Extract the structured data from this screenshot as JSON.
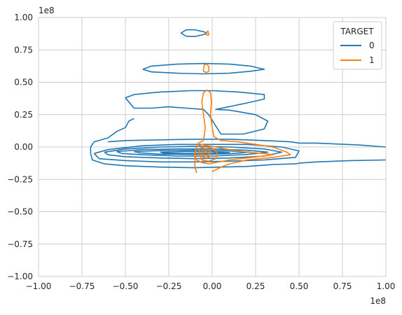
{
  "chart_data": {
    "type": "contour",
    "title": "",
    "xlabel": "",
    "ylabel": "",
    "x_offset_label": "1e8",
    "y_offset_label": "1e8",
    "xlim": [
      -1.0,
      1.0
    ],
    "ylim": [
      -1.0,
      1.0
    ],
    "x_ticks": [
      -1.0,
      -0.75,
      -0.5,
      -0.25,
      0.0,
      0.25,
      0.5,
      0.75,
      1.0
    ],
    "y_ticks": [
      -1.0,
      -0.75,
      -0.5,
      -0.25,
      0.0,
      0.25,
      0.5,
      0.75,
      1.0
    ],
    "x_tick_labels": [
      "−1.00",
      "−0.75",
      "−0.50",
      "−0.25",
      "0.00",
      "0.25",
      "0.50",
      "0.75",
      "1.00"
    ],
    "y_tick_labels": [
      "−1.00",
      "−0.75",
      "−0.50",
      "−0.25",
      "0.00",
      "0.25",
      "0.50",
      "0.75",
      "1.00"
    ],
    "grid": true,
    "legend": {
      "title": "TARGET",
      "placement": "top-right",
      "entries": [
        {
          "label": "0",
          "color": "#1f77b4"
        },
        {
          "label": "1",
          "color": "#ff7f0e"
        }
      ]
    },
    "series": [
      {
        "name": "0",
        "color": "#1f77b4",
        "contours": [
          [
            [
              -0.18,
              0.88
            ],
            [
              -0.15,
              0.905
            ],
            [
              -0.1,
              0.905
            ],
            [
              -0.05,
              0.89
            ],
            [
              -0.03,
              0.88
            ],
            [
              -0.05,
              0.868
            ],
            [
              -0.1,
              0.853
            ],
            [
              -0.15,
              0.855
            ],
            [
              -0.18,
              0.88
            ]
          ],
          [
            [
              -0.4,
              0.6
            ],
            [
              -0.35,
              0.625
            ],
            [
              -0.2,
              0.64
            ],
            [
              -0.05,
              0.645
            ],
            [
              0.1,
              0.64
            ],
            [
              0.22,
              0.625
            ],
            [
              0.3,
              0.6
            ],
            [
              0.22,
              0.585
            ],
            [
              0.1,
              0.57
            ],
            [
              -0.05,
              0.565
            ],
            [
              -0.2,
              0.57
            ],
            [
              -0.35,
              0.58
            ],
            [
              -0.4,
              0.6
            ]
          ],
          [
            [
              -0.5,
              0.38
            ],
            [
              -0.45,
              0.405
            ],
            [
              -0.3,
              0.425
            ],
            [
              -0.12,
              0.435
            ],
            [
              0.0,
              0.435
            ],
            [
              0.15,
              0.425
            ],
            [
              0.3,
              0.405
            ],
            [
              0.3,
              0.37
            ],
            [
              0.2,
              0.34
            ],
            [
              0.02,
              0.29
            ],
            [
              0.1,
              0.285
            ],
            [
              0.25,
              0.25
            ],
            [
              0.32,
              0.2
            ],
            [
              0.3,
              0.14
            ],
            [
              0.18,
              0.1
            ],
            [
              0.05,
              0.1
            ],
            [
              -0.02,
              0.25
            ],
            [
              -0.05,
              0.29
            ],
            [
              -0.15,
              0.3
            ],
            [
              -0.25,
              0.31
            ],
            [
              -0.35,
              0.3
            ],
            [
              -0.45,
              0.3
            ],
            [
              -0.5,
              0.38
            ]
          ],
          [
            [
              -0.45,
              0.22
            ],
            [
              -0.48,
              0.2
            ],
            [
              -0.5,
              0.15
            ],
            [
              -0.55,
              0.12
            ],
            [
              -0.6,
              0.07
            ],
            [
              -0.68,
              0.04
            ],
            [
              -0.7,
              0.0
            ],
            [
              -0.7,
              -0.05
            ],
            [
              -0.69,
              -0.1
            ],
            [
              -0.62,
              -0.13
            ],
            [
              -0.5,
              -0.145
            ],
            [
              -0.3,
              -0.155
            ],
            [
              -0.1,
              -0.16
            ],
            [
              0.05,
              -0.155
            ],
            [
              0.2,
              -0.15
            ],
            [
              0.35,
              -0.135
            ],
            [
              0.48,
              -0.13
            ],
            [
              0.5,
              -0.125
            ],
            [
              0.6,
              -0.115
            ],
            [
              0.8,
              -0.105
            ],
            [
              1.0,
              -0.1
            ]
          ],
          [
            [
              1.0,
              0.0
            ],
            [
              0.85,
              0.015
            ],
            [
              0.6,
              0.03
            ],
            [
              0.5,
              0.03
            ],
            [
              0.45,
              0.04
            ],
            [
              0.3,
              0.05
            ],
            [
              0.1,
              0.06
            ],
            [
              -0.1,
              0.06
            ],
            [
              -0.3,
              0.055
            ],
            [
              -0.5,
              0.05
            ],
            [
              -0.6,
              0.04
            ]
          ],
          [
            [
              -0.68,
              -0.05
            ],
            [
              -0.6,
              -0.02
            ],
            [
              -0.4,
              0.01
            ],
            [
              -0.2,
              0.02
            ],
            [
              0.0,
              0.02
            ],
            [
              0.2,
              0.02
            ],
            [
              0.4,
              0.0
            ],
            [
              0.5,
              -0.03
            ],
            [
              0.48,
              -0.08
            ],
            [
              0.3,
              -0.1
            ],
            [
              0.1,
              -0.11
            ],
            [
              -0.1,
              -0.115
            ],
            [
              -0.3,
              -0.115
            ],
            [
              -0.5,
              -0.105
            ],
            [
              -0.65,
              -0.09
            ],
            [
              -0.68,
              -0.05
            ]
          ],
          [
            [
              -0.62,
              -0.04
            ],
            [
              -0.5,
              -0.015
            ],
            [
              -0.3,
              0.0
            ],
            [
              -0.1,
              0.005
            ],
            [
              0.1,
              0.0
            ],
            [
              0.3,
              -0.015
            ],
            [
              0.4,
              -0.04
            ],
            [
              0.3,
              -0.07
            ],
            [
              0.1,
              -0.085
            ],
            [
              -0.1,
              -0.09
            ],
            [
              -0.3,
              -0.085
            ],
            [
              -0.5,
              -0.075
            ],
            [
              -0.6,
              -0.06
            ],
            [
              -0.62,
              -0.04
            ]
          ],
          [
            [
              -0.55,
              -0.035
            ],
            [
              -0.4,
              -0.02
            ],
            [
              -0.2,
              -0.015
            ],
            [
              0.0,
              -0.015
            ],
            [
              0.2,
              -0.025
            ],
            [
              0.32,
              -0.04
            ],
            [
              0.2,
              -0.058
            ],
            [
              0.0,
              -0.07
            ],
            [
              -0.2,
              -0.07
            ],
            [
              -0.4,
              -0.06
            ],
            [
              -0.52,
              -0.05
            ],
            [
              -0.55,
              -0.035
            ]
          ],
          [
            [
              -0.45,
              -0.035
            ],
            [
              -0.3,
              -0.028
            ],
            [
              -0.1,
              -0.025
            ],
            [
              0.1,
              -0.03
            ],
            [
              0.22,
              -0.04
            ],
            [
              0.1,
              -0.052
            ],
            [
              -0.1,
              -0.058
            ],
            [
              -0.3,
              -0.055
            ],
            [
              -0.42,
              -0.045
            ],
            [
              -0.45,
              -0.035
            ]
          ],
          [
            [
              -0.3,
              -0.04
            ],
            [
              -0.15,
              -0.035
            ],
            [
              0.0,
              -0.036
            ],
            [
              0.1,
              -0.042
            ],
            [
              0.0,
              -0.048
            ],
            [
              -0.15,
              -0.05
            ],
            [
              -0.28,
              -0.047
            ],
            [
              -0.3,
              -0.04
            ]
          ]
        ]
      },
      {
        "name": "1",
        "color": "#ff7f0e",
        "contours": [
          [
            [
              -0.035,
              0.88
            ],
            [
              -0.025,
              0.895
            ],
            [
              -0.02,
              0.88
            ],
            [
              -0.022,
              0.862
            ],
            [
              -0.035,
              0.868
            ],
            [
              -0.035,
              0.88
            ]
          ],
          [
            [
              -0.05,
              0.6
            ],
            [
              -0.045,
              0.635
            ],
            [
              -0.03,
              0.64
            ],
            [
              -0.02,
              0.62
            ],
            [
              -0.018,
              0.585
            ],
            [
              -0.035,
              0.575
            ],
            [
              -0.05,
              0.585
            ],
            [
              -0.05,
              0.6
            ]
          ],
          [
            [
              -0.09,
              -0.2
            ],
            [
              -0.1,
              -0.15
            ],
            [
              -0.1,
              -0.05
            ],
            [
              -0.08,
              0.03
            ],
            [
              -0.05,
              0.05
            ],
            [
              -0.04,
              0.15
            ],
            [
              -0.05,
              0.25
            ],
            [
              -0.06,
              0.35
            ],
            [
              -0.05,
              0.42
            ],
            [
              -0.03,
              0.44
            ],
            [
              -0.01,
              0.42
            ],
            [
              -0.005,
              0.35
            ],
            [
              -0.01,
              0.25
            ],
            [
              0.0,
              0.15
            ],
            [
              0.01,
              0.08
            ],
            [
              0.05,
              0.05
            ],
            [
              0.15,
              0.04
            ],
            [
              0.25,
              0.02
            ],
            [
              0.35,
              0.0
            ],
            [
              0.43,
              -0.04
            ],
            [
              0.45,
              -0.06
            ],
            [
              0.35,
              -0.08
            ],
            [
              0.2,
              -0.1
            ],
            [
              0.1,
              -0.13
            ],
            [
              0.05,
              -0.155
            ],
            [
              0.03,
              -0.17
            ],
            [
              0.0,
              -0.19
            ]
          ],
          [
            [
              -0.1,
              -0.05
            ],
            [
              -0.09,
              0.0
            ],
            [
              -0.06,
              0.02
            ],
            [
              -0.03,
              0.01
            ],
            [
              0.02,
              0.0
            ],
            [
              0.1,
              -0.02
            ],
            [
              0.2,
              -0.04
            ],
            [
              0.3,
              -0.05
            ],
            [
              0.35,
              -0.06
            ],
            [
              0.2,
              -0.085
            ],
            [
              0.1,
              -0.1
            ],
            [
              0.02,
              -0.12
            ],
            [
              -0.02,
              -0.13
            ],
            [
              -0.06,
              -0.12
            ],
            [
              -0.09,
              -0.1
            ],
            [
              -0.1,
              -0.05
            ]
          ],
          [
            [
              -0.08,
              -0.05
            ],
            [
              -0.07,
              -0.01
            ],
            [
              -0.04,
              0.0
            ],
            [
              0.0,
              -0.01
            ],
            [
              0.03,
              -0.04
            ],
            [
              0.02,
              -0.09
            ],
            [
              -0.02,
              -0.11
            ],
            [
              -0.06,
              -0.1
            ],
            [
              -0.08,
              -0.05
            ]
          ],
          [
            [
              -0.065,
              -0.05
            ],
            [
              -0.055,
              -0.025
            ],
            [
              -0.03,
              -0.02
            ],
            [
              -0.01,
              -0.035
            ],
            [
              -0.01,
              -0.07
            ],
            [
              -0.03,
              -0.085
            ],
            [
              -0.055,
              -0.08
            ],
            [
              -0.065,
              -0.05
            ]
          ],
          [
            [
              -0.05,
              -0.05
            ],
            [
              -0.04,
              -0.035
            ],
            [
              -0.025,
              -0.04
            ],
            [
              -0.022,
              -0.06
            ],
            [
              -0.035,
              -0.07
            ],
            [
              -0.048,
              -0.065
            ],
            [
              -0.05,
              -0.05
            ]
          ]
        ]
      }
    ]
  }
}
